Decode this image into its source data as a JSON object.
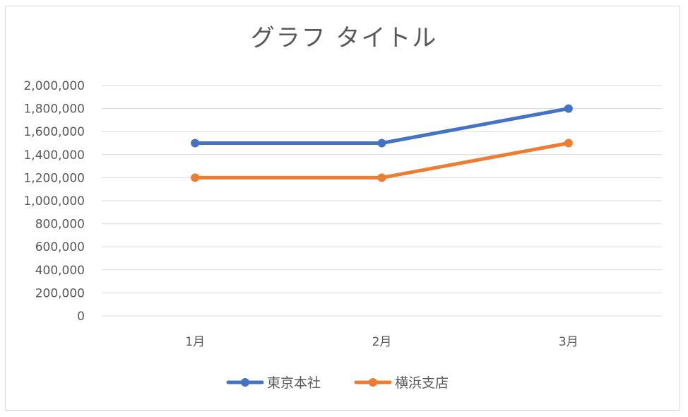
{
  "chart_data": {
    "type": "line",
    "title": "グラフ タイトル",
    "categories": [
      "1月",
      "2月",
      "3月"
    ],
    "series": [
      {
        "name": "東京本社",
        "values": [
          1500000,
          1500000,
          1800000
        ],
        "color": "#4472C4"
      },
      {
        "name": "横浜支店",
        "values": [
          1200000,
          1200000,
          1500000
        ],
        "color": "#ED7D31"
      }
    ],
    "ylim": [
      0,
      2000000
    ],
    "yticks": [
      0,
      200000,
      400000,
      600000,
      800000,
      1000000,
      1200000,
      1400000,
      1600000,
      1800000,
      2000000
    ],
    "ytick_labels": [
      "0",
      "200,000",
      "400,000",
      "600,000",
      "800,000",
      "1,000,000",
      "1,200,000",
      "1,400,000",
      "1,600,000",
      "1,800,000",
      "2,000,000"
    ],
    "grid": true,
    "legend_position": "bottom"
  }
}
